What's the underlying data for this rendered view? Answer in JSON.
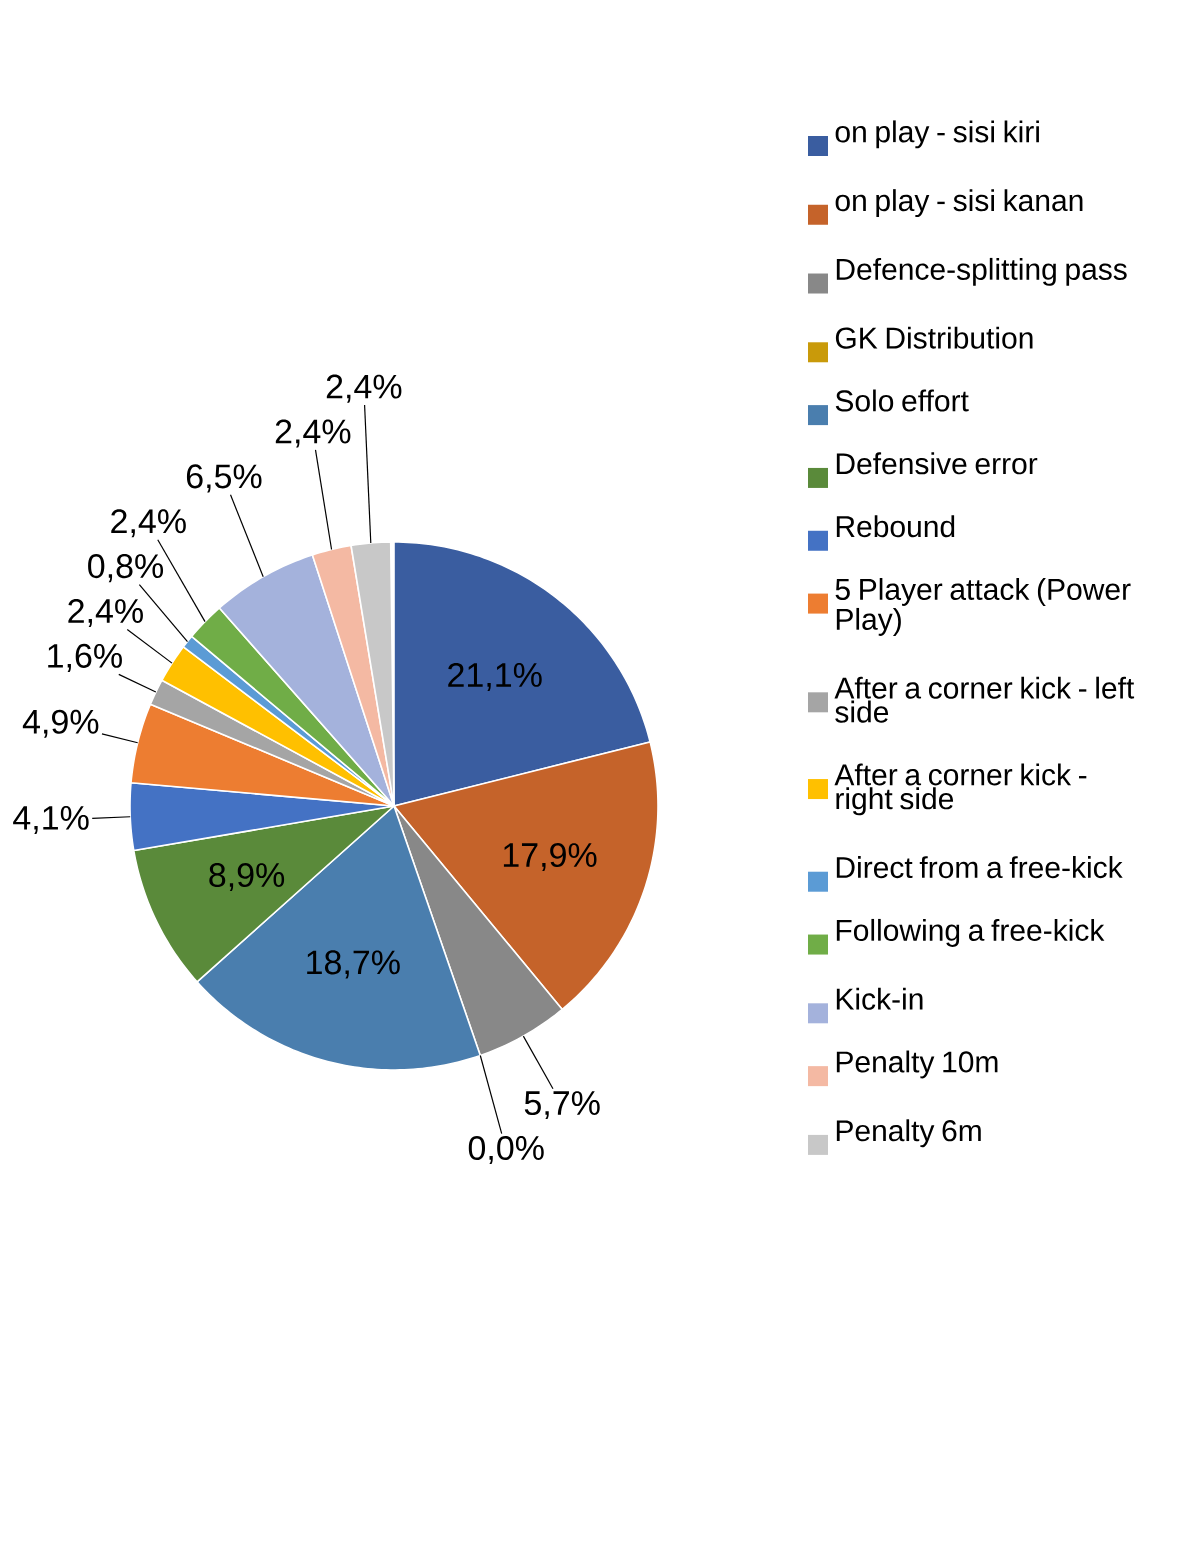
{
  "chart_data": {
    "type": "pie",
    "categories": [
      "on play - sisi kiri",
      "on play - sisi kanan",
      "Defence-splitting pass",
      "GK Distribution",
      "Solo effort",
      "Defensive error",
      "Rebound",
      "5 Player attack (Power Play)",
      "After a corner kick - left side",
      "After a corner kick - right side",
      "Direct from a free-kick",
      "Following a free-kick",
      "Kick-in",
      "Penalty 10m",
      "Penalty 6m"
    ],
    "values": [
      21.1,
      17.9,
      5.7,
      0.0,
      18.7,
      8.9,
      4.1,
      4.9,
      1.6,
      2.4,
      0.8,
      2.4,
      6.5,
      2.4,
      2.4
    ],
    "value_labels": [
      "21,1%",
      "17,9%",
      "5,7%",
      "0,0%",
      "18,7%",
      "8,9%",
      "4,1%",
      "4,9%",
      "1,6%",
      "2,4%",
      "0,8%",
      "2,4%",
      "6,5%",
      "2,4%",
      "2,4%"
    ],
    "colors": [
      "#3a5da0",
      "#c5632a",
      "#888888",
      "#c99a0a",
      "#4a7eae",
      "#5a8a3a",
      "#4472c4",
      "#ed7d31",
      "#a5a5a5",
      "#ffc000",
      "#5b9bd5",
      "#70ad47",
      "#a4b2dc",
      "#f4b9a3",
      "#c8c8c8"
    ],
    "legend": "right"
  }
}
